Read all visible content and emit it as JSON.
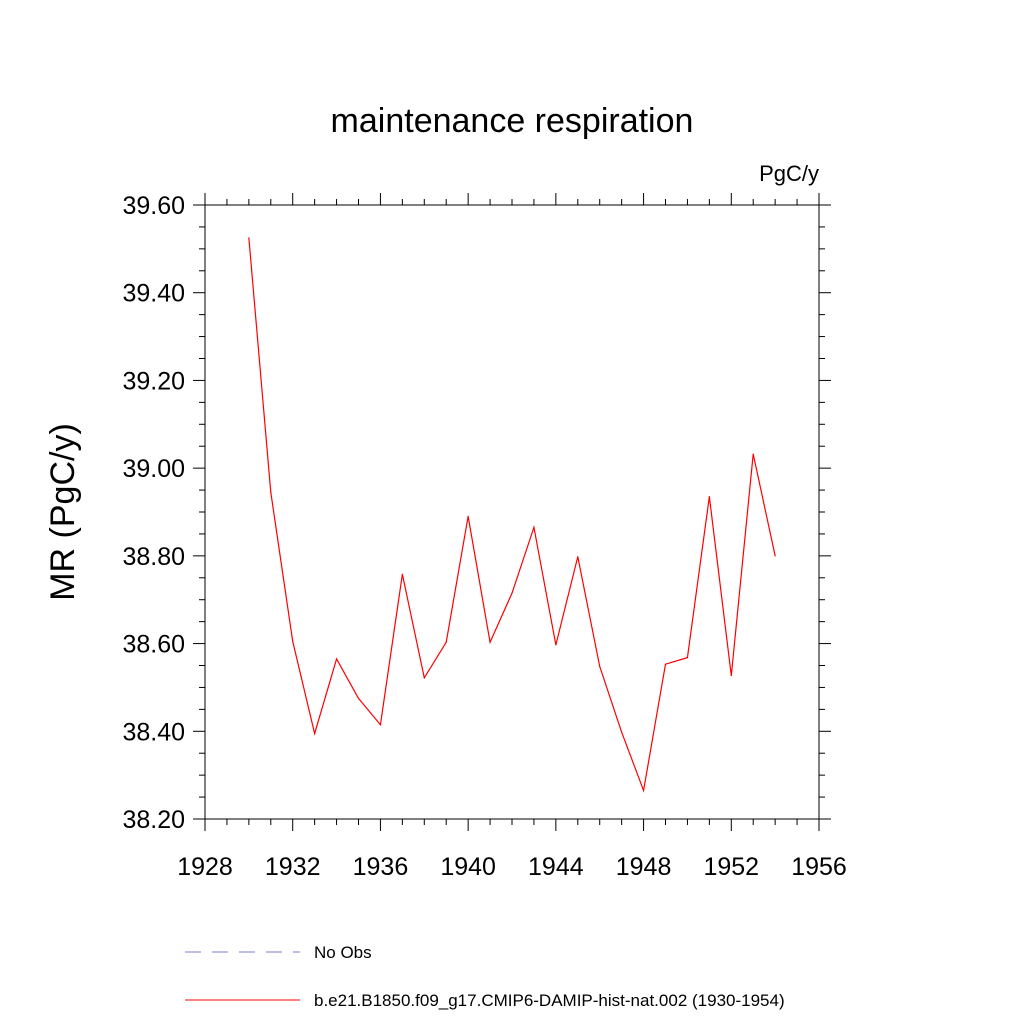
{
  "chart_data": {
    "type": "line",
    "title": "maintenance respiration",
    "units_label": "PgC/y",
    "ylabel": "MR  (PgC/y)",
    "xlabel": "",
    "xlim": [
      1928,
      1956
    ],
    "ylim": [
      38.2,
      39.6
    ],
    "x_ticks": [
      1928,
      1932,
      1936,
      1940,
      1944,
      1948,
      1952,
      1956
    ],
    "y_ticks": [
      "38.20",
      "38.40",
      "38.60",
      "38.80",
      "39.00",
      "39.20",
      "39.40",
      "39.60"
    ],
    "grid": false,
    "legend_position": "bottom",
    "series": [
      {
        "name": "b.e21.B1850.f09_g17.CMIP6-DAMIP-hist-nat.002 (1930-1954)",
        "color": "#ff0000",
        "style": "solid",
        "x": [
          1930,
          1931,
          1932,
          1933,
          1934,
          1935,
          1936,
          1937,
          1938,
          1939,
          1940,
          1941,
          1942,
          1943,
          1944,
          1945,
          1946,
          1947,
          1948,
          1949,
          1950,
          1951,
          1952,
          1953,
          1954
        ],
        "y": [
          39.525,
          38.945,
          38.605,
          38.395,
          38.565,
          38.475,
          38.415,
          38.758,
          38.522,
          38.603,
          38.89,
          38.603,
          38.715,
          38.865,
          38.597,
          38.798,
          38.548,
          38.398,
          38.265,
          38.553,
          38.568,
          38.935,
          38.527,
          39.032,
          38.8
        ]
      }
    ],
    "legend": [
      {
        "label": "No Obs",
        "color": "#7b7bd6",
        "style": "dashed"
      },
      {
        "label": "b.e21.B1850.f09_g17.CMIP6-DAMIP-hist-nat.002 (1930-1954)",
        "color": "#ff0000",
        "style": "solid"
      }
    ]
  }
}
